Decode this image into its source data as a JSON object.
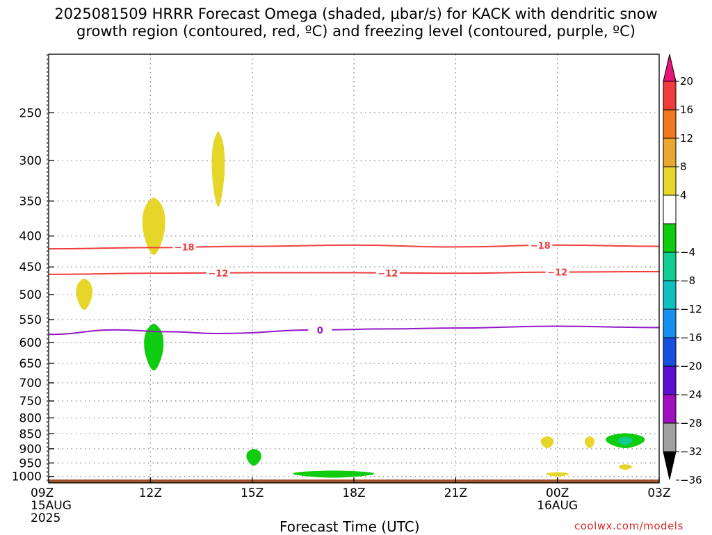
{
  "chart_data": {
    "type": "heatmap",
    "title_lines": [
      "2025081509 HRRR Forecast Omega (shaded, μbar/s) for KACK with dendritic snow",
      "growth region (contoured, red, ºC) and freezing level (contoured, purple, ºC)"
    ],
    "xlabel": "Forecast Time (UTC)",
    "credit": "coolwx.com/models",
    "x_range_hours": [
      0,
      18
    ],
    "x_ticks": [
      {
        "hour": 0,
        "lines": [
          "09Z",
          "15AUG",
          "2025"
        ]
      },
      {
        "hour": 3,
        "lines": [
          "12Z"
        ]
      },
      {
        "hour": 6,
        "lines": [
          "15Z"
        ]
      },
      {
        "hour": 9,
        "lines": [
          "18Z"
        ]
      },
      {
        "hour": 12,
        "lines": [
          "21Z"
        ]
      },
      {
        "hour": 15,
        "lines": [
          "00Z",
          "16AUG"
        ]
      },
      {
        "hour": 18,
        "lines": [
          "03Z"
        ]
      }
    ],
    "y_range_hpa": [
      1025,
      200
    ],
    "y_ticks": [
      250,
      300,
      350,
      400,
      450,
      500,
      550,
      600,
      650,
      700,
      750,
      800,
      850,
      900,
      950,
      1000
    ],
    "grid": true,
    "colorbar": {
      "labels": [
        20,
        16,
        12,
        8,
        4,
        -4,
        -8,
        -12,
        -16,
        -20,
        -24,
        -28,
        -32,
        -36
      ],
      "colors_top_to_bottom": [
        "#e81478",
        "#f03c3c",
        "#f07820",
        "#e8a830",
        "#e6d62a",
        "#ffffff",
        "#10cc10",
        "#10cc90",
        "#10c0c0",
        "#1890f0",
        "#1850e0",
        "#5a10d0",
        "#a010c0",
        "#a0a0a0",
        "#000000"
      ]
    },
    "contours": [
      {
        "name": "-18",
        "color": "#f03c3c",
        "label": "-18",
        "points": [
          [
            0,
            420
          ],
          [
            3,
            418
          ],
          [
            6,
            416
          ],
          [
            9,
            414
          ],
          [
            12,
            417
          ],
          [
            15,
            414
          ],
          [
            18,
            416
          ]
        ],
        "label_hours": [
          4,
          14.5
        ]
      },
      {
        "name": "-12",
        "color": "#f03c3c",
        "label": "-12",
        "points": [
          [
            0,
            463
          ],
          [
            3,
            461
          ],
          [
            6,
            460
          ],
          [
            9,
            460
          ],
          [
            12,
            461
          ],
          [
            15,
            459
          ],
          [
            18,
            458
          ]
        ],
        "label_hours": [
          5,
          10,
          15
        ]
      },
      {
        "name": "0",
        "color": "#9418c8",
        "label": "0",
        "points": [
          [
            0,
            582
          ],
          [
            2,
            572
          ],
          [
            3.5,
            576
          ],
          [
            5,
            580
          ],
          [
            8,
            572
          ],
          [
            10,
            570
          ],
          [
            12,
            568
          ],
          [
            15,
            564
          ],
          [
            18,
            567
          ]
        ],
        "label_hours": [
          8
        ]
      }
    ],
    "omega_regions": [
      {
        "hour": 5.0,
        "p_top": 268,
        "p_bottom": 358,
        "half_width_h": 0.2,
        "value": 6
      },
      {
        "hour": 3.1,
        "p_top": 345,
        "p_bottom": 430,
        "half_width_h": 0.35,
        "value": 6
      },
      {
        "hour": 1.05,
        "p_top": 470,
        "p_bottom": 530,
        "half_width_h": 0.25,
        "value": 6
      },
      {
        "hour": 3.1,
        "p_top": 558,
        "p_bottom": 668,
        "half_width_h": 0.3,
        "value": -6
      },
      {
        "hour": 6.05,
        "p_top": 900,
        "p_bottom": 960,
        "half_width_h": 0.23,
        "value": -6
      },
      {
        "hour": 8.4,
        "p_top": 978,
        "p_bottom": 1005,
        "half_width_h": 1.25,
        "value": -6
      },
      {
        "hour": 14.7,
        "p_top": 858,
        "p_bottom": 898,
        "half_width_h": 0.2,
        "value": 6
      },
      {
        "hour": 15.95,
        "p_top": 858,
        "p_bottom": 898,
        "half_width_h": 0.15,
        "value": 6
      },
      {
        "hour": 15.0,
        "p_top": 984,
        "p_bottom": 1000,
        "half_width_h": 0.35,
        "value": 6
      },
      {
        "hour": 17.0,
        "p_top": 848,
        "p_bottom": 898,
        "half_width_h": 0.6,
        "value": -6
      },
      {
        "hour": 17.0,
        "p_top": 860,
        "p_bottom": 888,
        "half_width_h": 0.22,
        "value": -10
      },
      {
        "hour": 17.0,
        "p_top": 955,
        "p_bottom": 975,
        "half_width_h": 0.2,
        "value": 6
      }
    ],
    "terrain_color": "#a0522d"
  }
}
